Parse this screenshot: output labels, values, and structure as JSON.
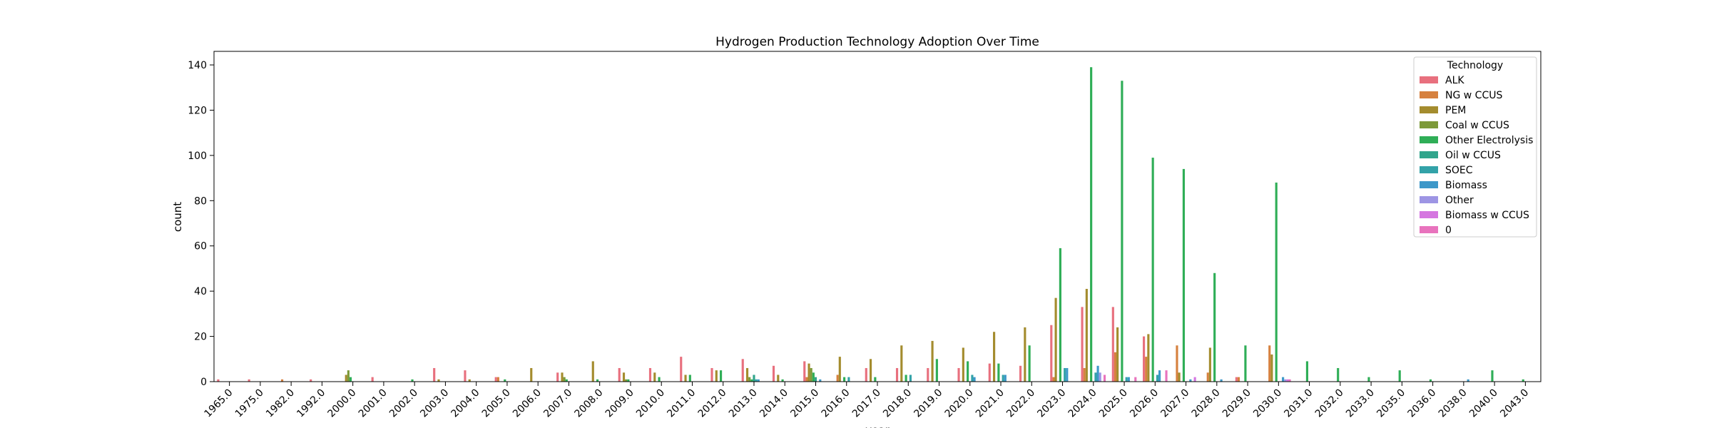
{
  "chart_data": {
    "type": "bar",
    "title": "Hydrogen Production Technology Adoption Over Time",
    "xlabel": "year",
    "ylabel": "count",
    "ylim": [
      0,
      146
    ],
    "yticks": [
      0,
      20,
      40,
      60,
      80,
      100,
      120,
      140
    ],
    "grid": false,
    "legend": {
      "title": "Technology",
      "placement": "top-right"
    },
    "categories": [
      "1965.0",
      "1975.0",
      "1982.0",
      "1992.0",
      "2000.0",
      "2001.0",
      "2002.0",
      "2003.0",
      "2004.0",
      "2005.0",
      "2006.0",
      "2007.0",
      "2008.0",
      "2009.0",
      "2010.0",
      "2011.0",
      "2012.0",
      "2013.0",
      "2014.0",
      "2015.0",
      "2016.0",
      "2017.0",
      "2018.0",
      "2019.0",
      "2020.0",
      "2021.0",
      "2022.0",
      "2023.0",
      "2024.0",
      "2025.0",
      "2026.0",
      "2027.0",
      "2028.0",
      "2029.0",
      "2030.0",
      "2031.0",
      "2032.0",
      "2033.0",
      "2035.0",
      "2036.0",
      "2038.0",
      "2040.0",
      "2043.0"
    ],
    "series": [
      {
        "name": "ALK",
        "color": "#e8707e",
        "values": [
          1,
          1,
          0,
          1,
          0,
          2,
          0,
          6,
          5,
          2,
          0,
          4,
          0,
          6,
          6,
          11,
          6,
          10,
          7,
          9,
          0,
          6,
          6,
          6,
          6,
          8,
          7,
          25,
          33,
          33,
          20,
          0,
          0,
          2,
          0,
          0,
          0,
          0,
          0,
          0,
          0,
          0,
          0
        ]
      },
      {
        "name": "NG w CCUS",
        "color": "#d6813f",
        "values": [
          0,
          0,
          1,
          0,
          0,
          0,
          0,
          0,
          0,
          2,
          0,
          0,
          0,
          0,
          0,
          0,
          0,
          0,
          0,
          2,
          3,
          0,
          0,
          0,
          0,
          0,
          0,
          2,
          6,
          13,
          11,
          16,
          4,
          2,
          16,
          0,
          0,
          0,
          0,
          0,
          0,
          0,
          0
        ]
      },
      {
        "name": "PEM",
        "color": "#a48c2e",
        "values": [
          0,
          0,
          0,
          0,
          3,
          0,
          0,
          1,
          1,
          0,
          6,
          4,
          9,
          4,
          4,
          3,
          5,
          6,
          3,
          8,
          11,
          10,
          16,
          18,
          15,
          22,
          24,
          37,
          41,
          24,
          21,
          4,
          15,
          0,
          12,
          0,
          0,
          0,
          0,
          0,
          0,
          0,
          0
        ]
      },
      {
        "name": "Coal w CCUS",
        "color": "#7d9a3a",
        "values": [
          0,
          0,
          0,
          0,
          5,
          0,
          0,
          0,
          0,
          0,
          0,
          2,
          0,
          1,
          0,
          0,
          0,
          2,
          0,
          6,
          0,
          0,
          0,
          0,
          0,
          0,
          0,
          0,
          0,
          0,
          0,
          0,
          0,
          0,
          0,
          0,
          0,
          0,
          0,
          0,
          0,
          0,
          0
        ]
      },
      {
        "name": "Other Electrolysis",
        "color": "#2fae57",
        "values": [
          0,
          0,
          0,
          0,
          2,
          0,
          1,
          0,
          0,
          1,
          0,
          1,
          1,
          1,
          2,
          3,
          5,
          1,
          1,
          4,
          2,
          2,
          3,
          10,
          9,
          8,
          16,
          59,
          139,
          133,
          99,
          94,
          48,
          16,
          88,
          9,
          6,
          2,
          5,
          1,
          0,
          5,
          1
        ]
      },
      {
        "name": "Oil w CCUS",
        "color": "#31a58c",
        "values": [
          0,
          0,
          0,
          0,
          0,
          0,
          0,
          0,
          0,
          0,
          0,
          0,
          0,
          0,
          0,
          0,
          0,
          3,
          0,
          2,
          0,
          0,
          0,
          0,
          0,
          0,
          0,
          0,
          0,
          0,
          0,
          0,
          0,
          0,
          0,
          0,
          0,
          0,
          0,
          0,
          0,
          0,
          0
        ]
      },
      {
        "name": "SOEC",
        "color": "#33a2a8",
        "values": [
          0,
          0,
          0,
          0,
          0,
          0,
          0,
          0,
          0,
          0,
          0,
          0,
          0,
          0,
          0,
          0,
          0,
          1,
          0,
          0,
          2,
          0,
          3,
          0,
          3,
          3,
          0,
          6,
          4,
          2,
          3,
          0,
          0,
          0,
          0,
          0,
          0,
          0,
          0,
          0,
          0,
          0,
          0
        ]
      },
      {
        "name": "Biomass",
        "color": "#3d98c9",
        "values": [
          0,
          0,
          0,
          0,
          0,
          0,
          0,
          0,
          0,
          0,
          0,
          0,
          0,
          0,
          0,
          0,
          0,
          1,
          0,
          1,
          0,
          0,
          0,
          0,
          2,
          3,
          0,
          6,
          7,
          2,
          5,
          1,
          1,
          0,
          2,
          0,
          0,
          0,
          0,
          0,
          1,
          0,
          0
        ]
      },
      {
        "name": "Other",
        "color": "#9d95e4",
        "values": [
          0,
          0,
          0,
          0,
          0,
          0,
          0,
          0,
          0,
          0,
          0,
          0,
          0,
          0,
          0,
          0,
          0,
          0,
          0,
          0,
          0,
          0,
          0,
          0,
          0,
          0,
          0,
          0,
          4,
          0,
          0,
          0,
          0,
          0,
          1,
          0,
          0,
          0,
          0,
          0,
          0,
          0,
          0
        ]
      },
      {
        "name": "Biomass w CCUS",
        "color": "#d576e0",
        "values": [
          0,
          0,
          0,
          0,
          0,
          0,
          0,
          0,
          0,
          0,
          0,
          0,
          0,
          0,
          0,
          0,
          0,
          0,
          0,
          0,
          0,
          0,
          0,
          0,
          0,
          0,
          0,
          0,
          0,
          0,
          0,
          2,
          0,
          0,
          1,
          0,
          0,
          0,
          0,
          0,
          0,
          0,
          0
        ]
      },
      {
        "name": "0",
        "color": "#e873bd",
        "values": [
          0,
          0,
          0,
          0,
          0,
          0,
          0,
          0,
          0,
          0,
          0,
          0,
          0,
          0,
          0,
          0,
          0,
          0,
          0,
          0,
          0,
          0,
          0,
          0,
          0,
          0,
          0,
          0,
          3,
          2,
          5,
          0,
          0,
          0,
          1,
          0,
          0,
          0,
          0,
          0,
          0,
          0,
          0
        ]
      }
    ]
  }
}
